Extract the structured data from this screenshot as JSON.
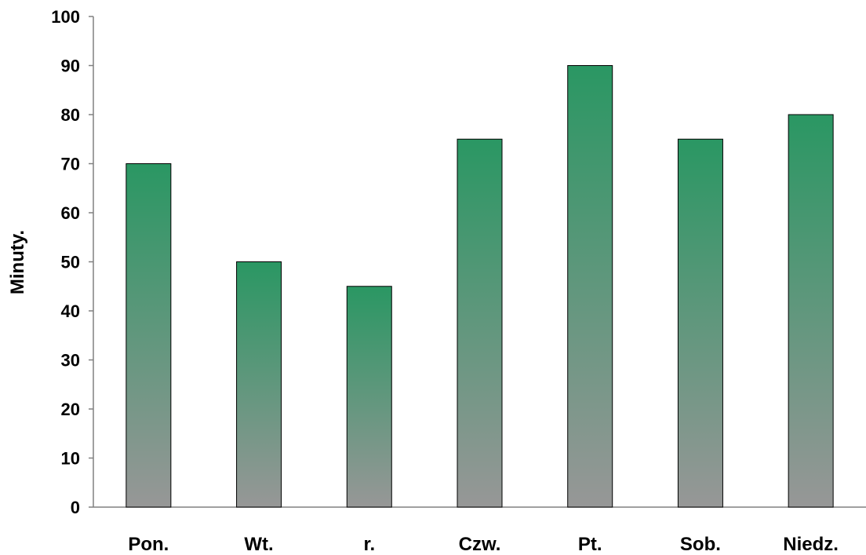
{
  "chart_data": {
    "type": "bar",
    "title": "",
    "xlabel": "",
    "ylabel": "Minuty.",
    "categories": [
      "Pon.",
      "Wt.",
      "r.",
      "Czw.",
      "Pt.",
      "Sob.",
      "Niedz."
    ],
    "values": [
      70,
      50,
      45,
      75,
      90,
      75,
      80
    ],
    "ylim": [
      0,
      100
    ],
    "yticks": [
      0,
      10,
      20,
      30,
      40,
      50,
      60,
      70,
      80,
      90,
      100
    ],
    "grid": false,
    "legend": "none",
    "colors": {
      "bar_top": "#2a9763",
      "bar_bottom": "#979797",
      "bar_stroke": "#000000",
      "axis": "#808080"
    }
  }
}
